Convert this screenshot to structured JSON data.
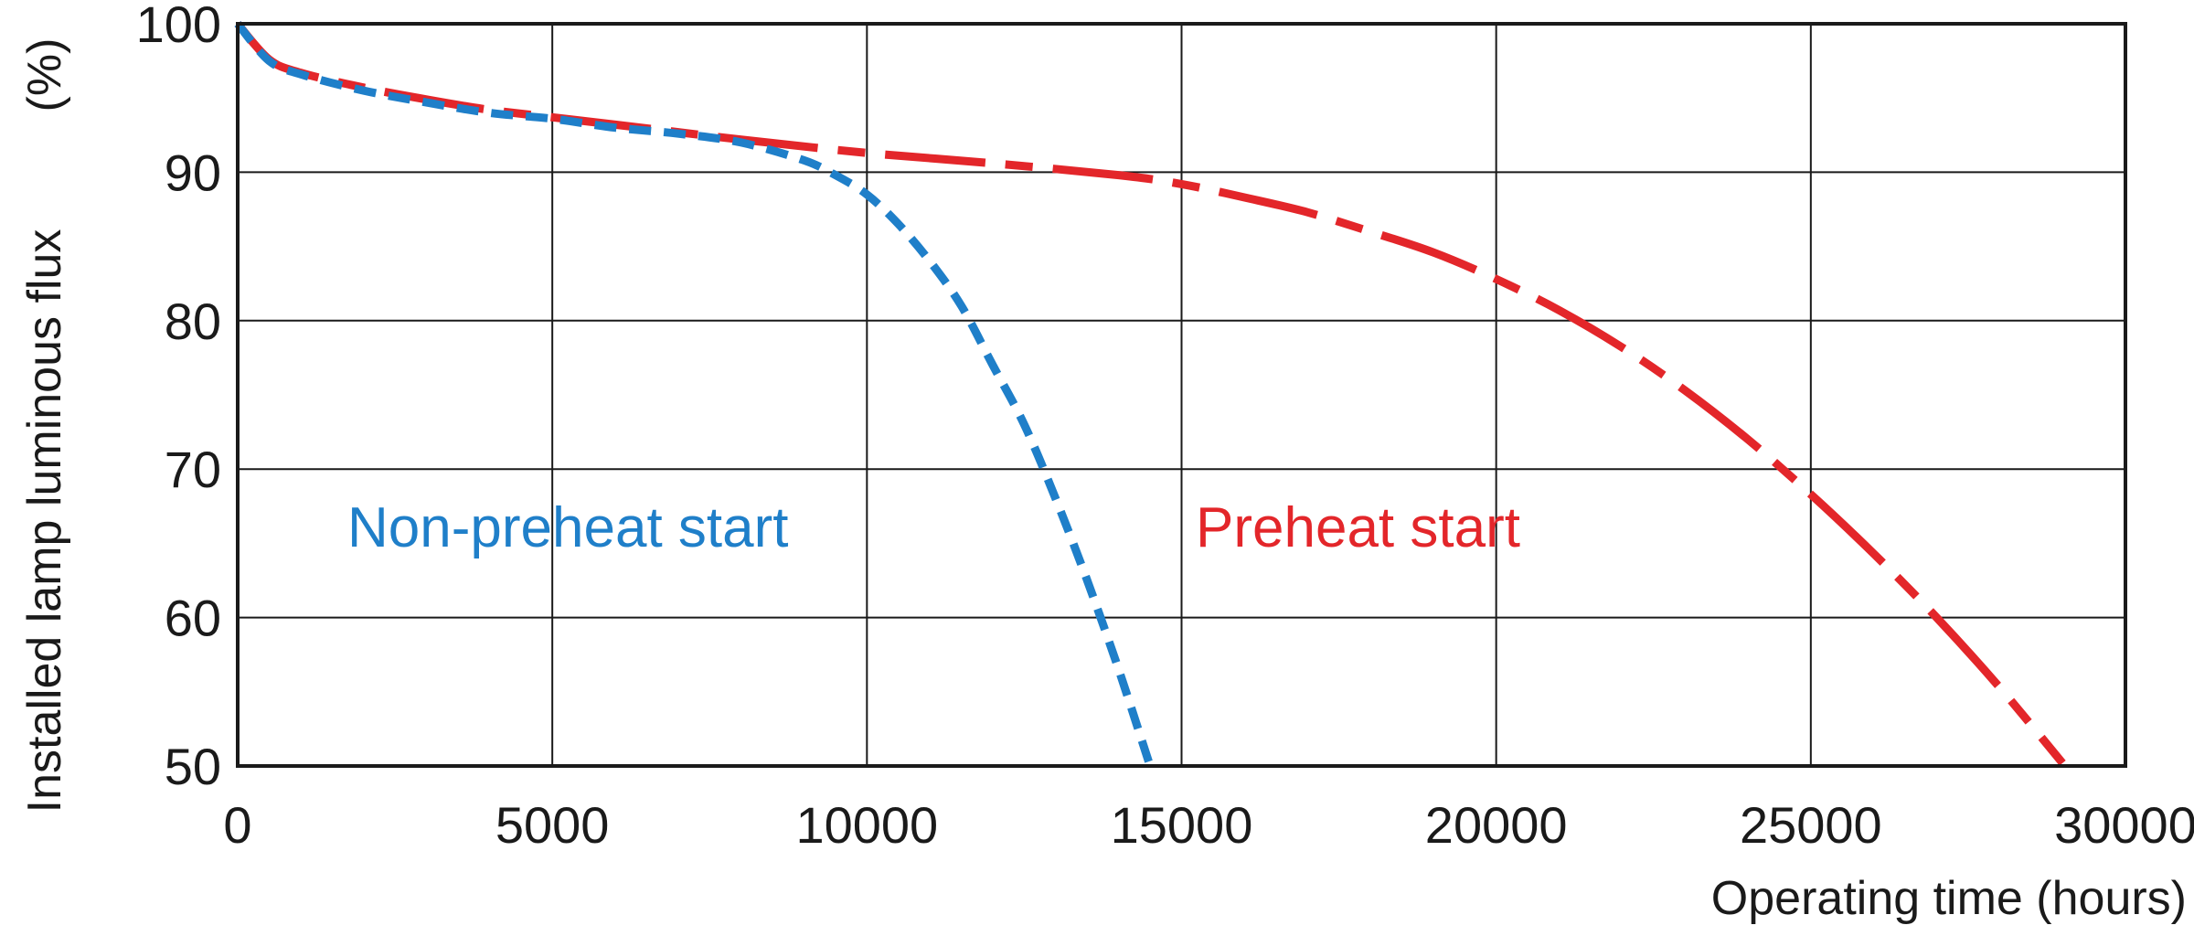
{
  "chart_data": {
    "type": "line",
    "title": "",
    "xlabel": "Operating time (hours)",
    "ylabel": "Installed lamp luminous flux",
    "ylabel_unit": "(%)",
    "xlim": [
      0,
      30000
    ],
    "ylim": [
      50,
      100
    ],
    "xticks": [
      0,
      5000,
      10000,
      15000,
      20000,
      25000,
      30000
    ],
    "yticks": [
      50,
      60,
      70,
      80,
      90,
      100
    ],
    "grid": true,
    "legend": "none",
    "series": [
      {
        "name": "Non-preheat start",
        "color": "#1f7fc9",
        "line_style": "dashed",
        "x": [
          0,
          500,
          1000,
          2000,
          3000,
          4000,
          5000,
          6000,
          7000,
          8000,
          9000,
          9500,
          10000,
          10500,
          11000,
          11500,
          12000,
          12500,
          13000,
          13500,
          14000,
          14500
        ],
        "y": [
          100,
          97.5,
          96.6,
          95.5,
          94.7,
          94,
          93.6,
          93,
          92.6,
          92,
          90.8,
          89.8,
          88.5,
          86.5,
          84,
          81,
          77,
          73,
          68,
          62.5,
          56.5,
          50
        ]
      },
      {
        "name": "Preheat start",
        "color": "#e3262a",
        "line_style": "dash-dot",
        "x": [
          0,
          500,
          1000,
          2000,
          3000,
          4000,
          5000,
          6000,
          7000,
          8000,
          10000,
          12000,
          14000,
          15000,
          16000,
          17000,
          18000,
          19000,
          20000,
          21000,
          22000,
          23000,
          24000,
          25000,
          26000,
          27000,
          28000,
          29000
        ],
        "y": [
          100,
          97.6,
          96.7,
          95.7,
          94.9,
          94.2,
          93.7,
          93.2,
          92.7,
          92.2,
          91.3,
          90.6,
          89.8,
          89.2,
          88.3,
          87.3,
          86,
          84.6,
          82.8,
          80.7,
          78.2,
          75.3,
          72,
          68.3,
          64.3,
          60,
          55.3,
          50.2
        ]
      }
    ]
  }
}
